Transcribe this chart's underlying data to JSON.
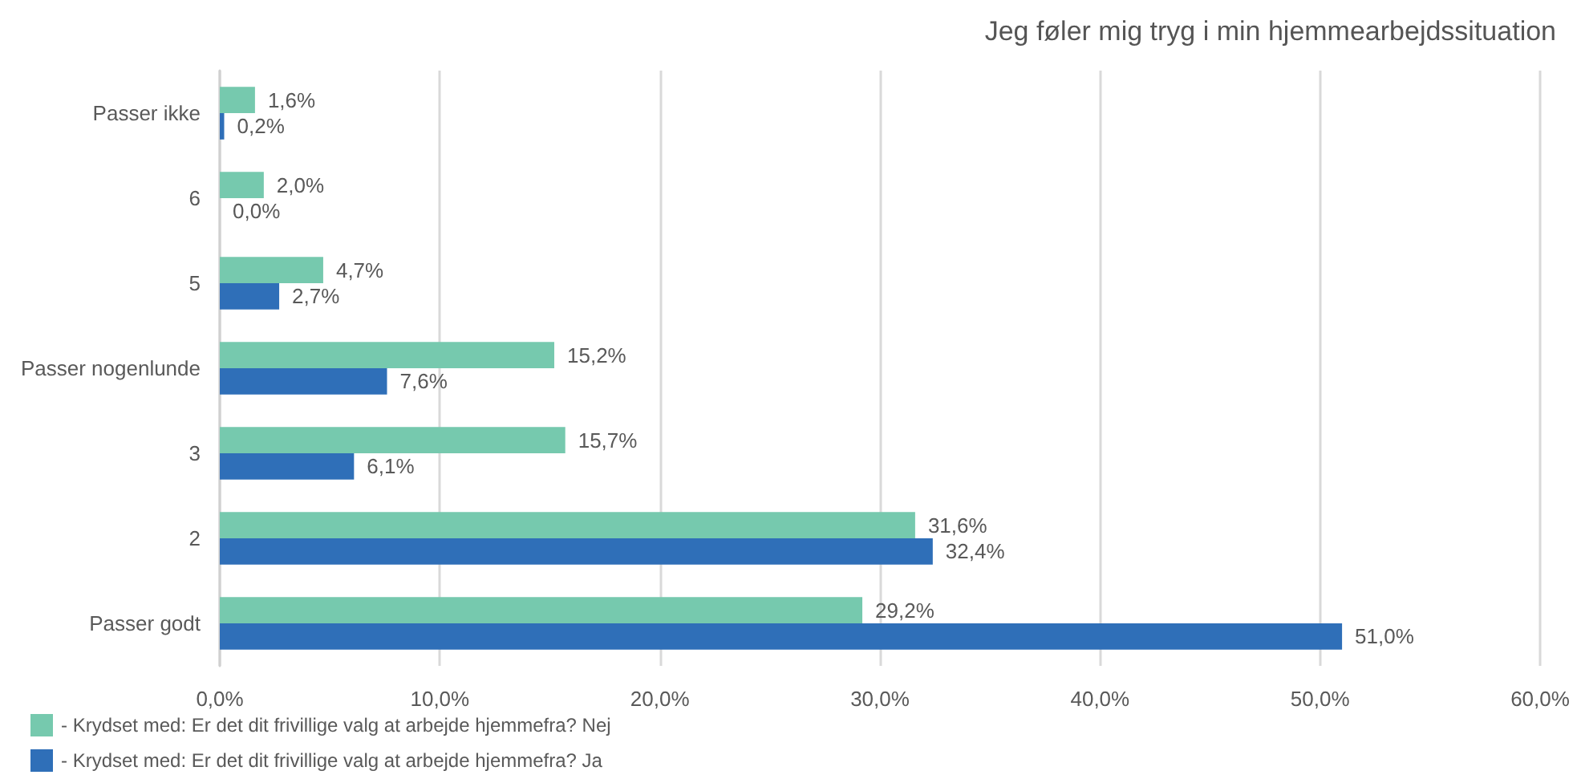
{
  "chart_data": {
    "type": "bar",
    "orientation": "horizontal",
    "title": "Jeg føler mig tryg i min hjemmearbejdssituation",
    "categories": [
      "Passer ikke",
      "6",
      "5",
      "Passer nogenlunde",
      "3",
      "2",
      "Passer godt"
    ],
    "series": [
      {
        "name": "- Krydset med: Er det dit frivillige valg at arbejde hjemmefra? Nej",
        "color": "#76c9ae",
        "values": [
          1.6,
          2.0,
          4.7,
          15.2,
          15.7,
          31.6,
          29.2
        ],
        "value_labels": [
          "1,6%",
          "2,0%",
          "4,7%",
          "15,2%",
          "15,7%",
          "31,6%",
          "29,2%"
        ]
      },
      {
        "name": "- Krydset med: Er det dit frivillige valg at arbejde hjemmefra? Ja",
        "color": "#2f6fb8",
        "values": [
          0.2,
          0.0,
          2.7,
          7.6,
          6.1,
          32.4,
          51.0
        ],
        "value_labels": [
          "0,2%",
          "0,0%",
          "2,7%",
          "7,6%",
          "6,1%",
          "32,4%",
          "51,0%"
        ]
      }
    ],
    "xlim": [
      0,
      60
    ],
    "xticks": [
      {
        "value": 0,
        "label": "0,0%"
      },
      {
        "value": 10,
        "label": "10,0%"
      },
      {
        "value": 20,
        "label": "20,0%"
      },
      {
        "value": 30,
        "label": "30,0%"
      },
      {
        "value": 40,
        "label": "40,0%"
      },
      {
        "value": 50,
        "label": "50,0%"
      },
      {
        "value": 60,
        "label": "60,0%"
      }
    ],
    "grid": "x",
    "legend": "bottom left"
  }
}
